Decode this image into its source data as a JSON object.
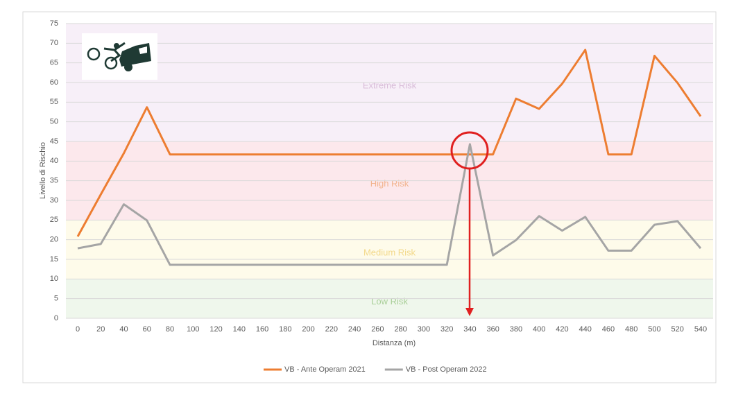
{
  "chart_data": {
    "type": "line",
    "x_label": "Distanza (m)",
    "y_label": "Livello di Rischio",
    "x": [
      0,
      20,
      40,
      60,
      80,
      100,
      120,
      140,
      160,
      180,
      200,
      220,
      240,
      260,
      280,
      300,
      320,
      340,
      360,
      380,
      400,
      420,
      440,
      460,
      480,
      500,
      520,
      540
    ],
    "xlim": [
      0,
      540
    ],
    "xticks": [
      0,
      20,
      40,
      60,
      80,
      100,
      120,
      140,
      160,
      180,
      200,
      220,
      240,
      260,
      280,
      300,
      320,
      340,
      360,
      380,
      400,
      420,
      440,
      460,
      480,
      500,
      520,
      540
    ],
    "ylim": [
      0,
      75
    ],
    "yticks": [
      0,
      5,
      10,
      15,
      20,
      25,
      30,
      35,
      40,
      45,
      50,
      55,
      60,
      65,
      70,
      75
    ],
    "grid": true,
    "legend": "bottom",
    "bands": [
      {
        "label": "Extreme Risk",
        "from": 45,
        "to": 75,
        "color": "#f7eff8",
        "label_color": "#d9bcd9"
      },
      {
        "label": "High Risk",
        "from": 25,
        "to": 45,
        "color": "#fce8ec",
        "label_color": "#f2b48e"
      },
      {
        "label": "Medium Risk",
        "from": 10,
        "to": 25,
        "color": "#fefbea",
        "label_color": "#f3d98a"
      },
      {
        "label": "Low Risk",
        "from": 0,
        "to": 10,
        "color": "#eff7ec",
        "label_color": "#a9cf98"
      }
    ],
    "series": [
      {
        "name": "VB - Ante Operam 2021",
        "color": "#ed7d31",
        "values": [
          20.8,
          31.5,
          42,
          53.7,
          41.7,
          41.7,
          41.7,
          41.7,
          41.7,
          41.7,
          41.7,
          41.7,
          41.7,
          41.7,
          41.7,
          41.7,
          41.7,
          41.7,
          41.7,
          55.9,
          53.3,
          59.7,
          68.3,
          41.7,
          41.7,
          66.8,
          59.9,
          51.4
        ]
      },
      {
        "name": "VB - Post Operam 2022",
        "color": "#a5a5a5",
        "values": [
          17.8,
          18.9,
          29,
          24.9,
          13.6,
          13.6,
          13.6,
          13.6,
          13.6,
          13.6,
          13.6,
          13.6,
          13.6,
          13.6,
          13.6,
          13.6,
          13.6,
          44.3,
          16,
          19.9,
          26,
          22.3,
          25.8,
          17.2,
          17.2,
          23.8,
          24.7,
          17.8
        ]
      }
    ]
  }
}
